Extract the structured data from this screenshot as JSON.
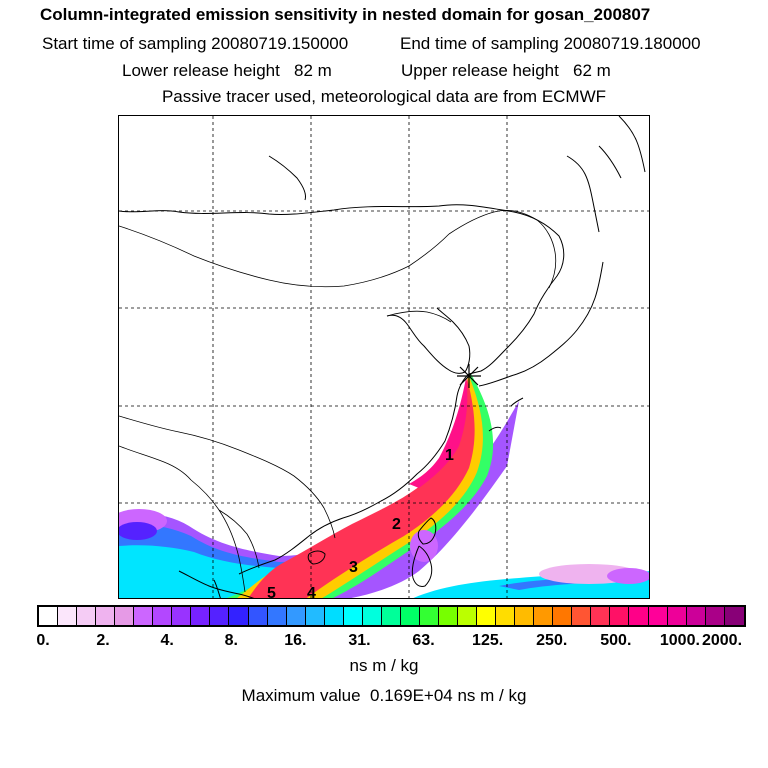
{
  "title": "Column-integrated emission sensitivity in nested domain for gosan_200807",
  "sampling": {
    "start": "Start time of sampling 20080719.150000",
    "end": "End time of sampling 20080719.180000"
  },
  "release": {
    "lower": "Lower release height   82 m",
    "upper": "Upper release height   62 m"
  },
  "tracer_note": "Passive tracer used, meteorological data are from ECMWF",
  "trajectory_labels": [
    "1",
    "2",
    "3",
    "4",
    "5"
  ],
  "colorbar": {
    "colors": [
      "#ffffff",
      "#fbe6fb",
      "#f5ccf5",
      "#efb3ef",
      "#e69ae6",
      "#cc66ff",
      "#b347ff",
      "#9933ff",
      "#7722ff",
      "#5522ff",
      "#3322ff",
      "#3355ff",
      "#3377ff",
      "#3399ff",
      "#22bbff",
      "#00ddff",
      "#00ffff",
      "#00ffdd",
      "#00ff99",
      "#00ff66",
      "#33ff33",
      "#77ff00",
      "#bbff00",
      "#ffff00",
      "#ffdd00",
      "#ffbb00",
      "#ff9900",
      "#ff7700",
      "#ff5533",
      "#ff3355",
      "#ff1166",
      "#ff0088",
      "#ff0099",
      "#ee0099",
      "#cc0099",
      "#aa0088",
      "#880077"
    ],
    "tick_labels": [
      "0.",
      "2.",
      "4.",
      "8.",
      "16.",
      "31.",
      "63.",
      "125.",
      "250.",
      "500.",
      "1000.",
      "2000."
    ],
    "units": "ns m / kg"
  },
  "maximum_value": "Maximum value  0.169E+04 ns m / kg"
}
